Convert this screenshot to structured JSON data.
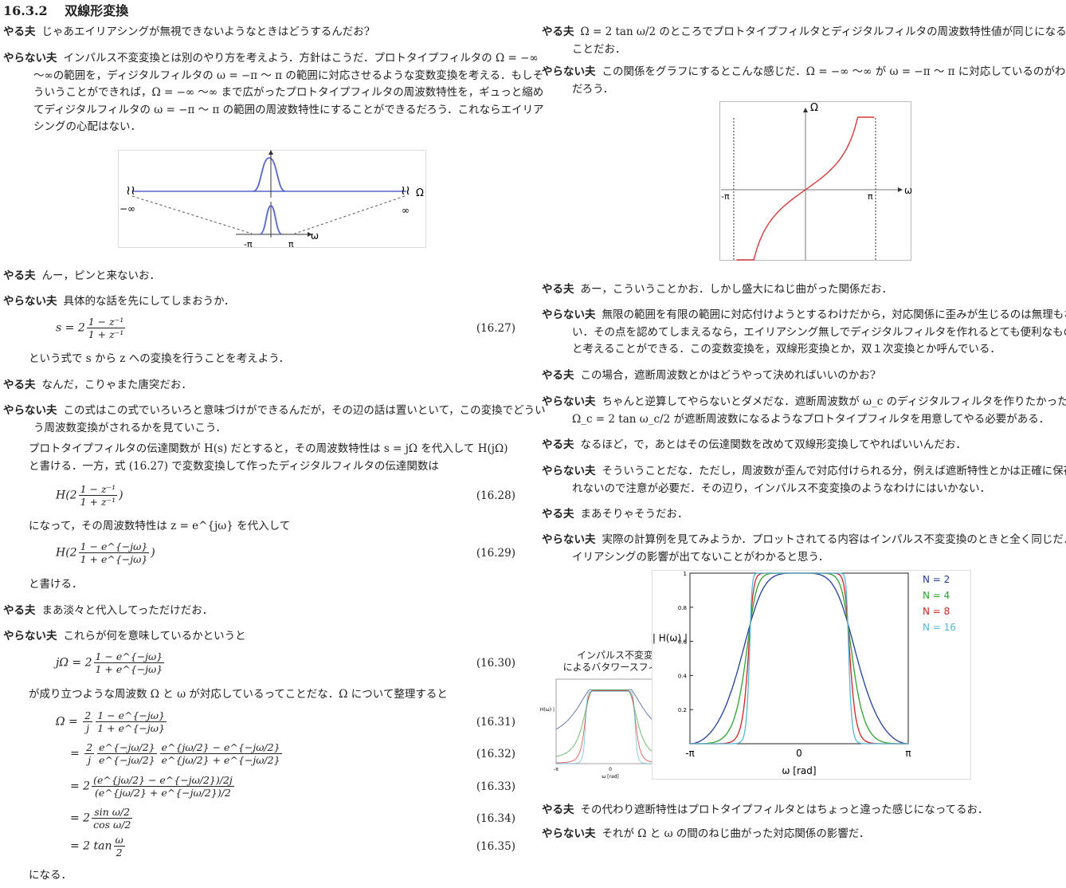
{
  "section": {
    "number": "16.3.2",
    "title": "双線形変換"
  },
  "speakers": {
    "yaruo": "やる夫",
    "yaranai": "やらない夫"
  },
  "left": {
    "p1": "じゃあエイリアシングが無視できないようなときはどうするんだお?",
    "p2": "インパルス不変変換とは別のやり方を考えよう．方針はこうだ．プロトタイプフィルタの Ω = −∞ 〜∞の範囲を，ディジタルフィルタの ω = −π 〜 π の範囲に対応させるような変数変換を考える．もしそういうことができれば，Ω = −∞ 〜∞ まで広がったプロトタイプフィルタの周波数特性を，ギュっと縮めてディジタルフィルタの ω = −π 〜 π の範囲の周波数特性にすることができるだろう．これならエイリアシングの心配はない．",
    "fig1": {
      "left_inf": "−∞",
      "right_inf": "∞",
      "omega_cap": "Ω",
      "omega": "ω",
      "neg_pi": "-π",
      "pi": "π"
    },
    "p3": "んー，ピンと来ないお．",
    "p4": "具体的な話を先にしてしまおうか．",
    "eq27": {
      "lhs": "s = 2",
      "num": "1 − z⁻¹",
      "den": "1 + z⁻¹",
      "tag": "(16.27)"
    },
    "p5": "という式で s から z への変換を行うことを考えよう．",
    "p6": "なんだ，こりゃまた唐突だお．",
    "p7": "この式はこの式でいろいろと意味づけができるんだが，その辺の話は置いといて，この変換でどういう周波数変換がされるかを見ていこう．",
    "p8": "プロトタイプフィルタの伝達関数が H(s) だとすると，その周波数特性は s = jΩ を代入して H(jΩ) と書ける．一方，式 (16.27) で変数変換して作ったディジタルフィルタの伝達関数は",
    "eq28": {
      "lhs": "H(2",
      "num": "1 − z⁻¹",
      "den": "1 + z⁻¹",
      "rhs": ")",
      "tag": "(16.28)"
    },
    "p9": "になって，その周波数特性は z = e^{jω} を代入して",
    "eq29": {
      "lhs": "H(2",
      "num": "1 − e^{−jω}",
      "den": "1 + e^{−jω}",
      "rhs": ")",
      "tag": "(16.29)"
    },
    "p10": "と書ける．",
    "p11": "まあ淡々と代入してっただけだお．",
    "p12": "これらが何を意味しているかというと",
    "eq30": {
      "lhs": "jΩ = 2",
      "num": "1 − e^{−jω}",
      "den": "1 + e^{−jω}",
      "tag": "(16.30)"
    },
    "p13": "が成り立つような周波数 Ω と ω が対応しているってことだな．Ω について整理すると",
    "eq31": {
      "lhs": "Ω = ",
      "f1n": "2",
      "f1d": "j",
      "num": "1 − e^{−jω}",
      "den": "1 + e^{−jω}",
      "tag": "(16.31)"
    },
    "eq32": {
      "lhs": "= ",
      "f1n": "2",
      "f1d": "j",
      "num": "e^{−jω/2}",
      "den": "e^{−jω/2}",
      "num2": "e^{jω/2} − e^{−jω/2}",
      "den2": "e^{jω/2} + e^{−jω/2}",
      "tag": "(16.32)"
    },
    "eq33": {
      "lhs": "= 2",
      "num": "(e^{jω/2} − e^{−jω/2})/2j",
      "den": "(e^{jω/2} + e^{−jω/2})/2",
      "tag": "(16.33)"
    },
    "eq34": {
      "lhs": "= 2",
      "num": "sin ω/2",
      "den": "cos ω/2",
      "tag": "(16.34)"
    },
    "eq35": {
      "lhs": "= 2 tan",
      "num": "ω",
      "den": "2",
      "tag": "(16.35)"
    },
    "p14": "になる．"
  },
  "right": {
    "r1": "Ω = 2 tan ω/2 のところでプロトタイプフィルタとディジタルフィルタの周波数特性値が同じになるってことだお．",
    "r2": "この関係をグラフにするとこんな感じだ．Ω = −∞ 〜∞ が ω = −π 〜 π に対応しているのがわかるだろう．",
    "fig2": {
      "omega_cap": "Ω",
      "omega": "ω",
      "neg_pi": "-π",
      "pi": "π"
    },
    "r3": "あー，こういうことかお．しかし盛大にねじ曲がった関係だお．",
    "r4": "無限の範囲を有限の範囲に対応付けようとするわけだから，対応関係に歪みが生じるのは無理もない．その点を認めてしまえるなら，エイリアシング無しでディジタルフィルタを作れるとても便利なものだと考えることができる．この変数変換を，双線形変換とか，双１次変換とか呼んでいる．",
    "r5": "この場合，遮断周波数とかはどうやって決めればいいのかお?",
    "r6": "ちゃんと逆算してやらないとダメだな．遮断周波数が ω_c のディジタルフィルタを作りたかったら，Ω_c = 2 tan ω_c/2 が遮断周波数になるようなプロトタイプフィルタを用意してやる必要がある．",
    "r7": "なるほど，で，あとはその伝達関数を改めて双線形変換してやればいいんだお．",
    "r8": "そういうことだな．ただし，周波数が歪んで対応付けられる分，例えば遮断特性とかは正確に保存されないので注意が必要だ．その辺り，インパルス不変変換のようなわけにはいかない．",
    "r9": "まあそりゃそうだお．",
    "r10": "実際の計算例を見てみようか．プロットされてる内容はインパルス不変変換のときと全く同じだ．エイリアシングの影響が出てないことがわかると思う．",
    "r11": "その代わり遮断特性はプロトタイプフィルタとはちょっと違った感じになってるお．",
    "r12": "それが Ω と ω の間のねじ曲がった対応関係の影響だ．"
  },
  "chart_data": [
    {
      "type": "line",
      "title": "",
      "xlabel": "ω [rad]",
      "ylabel": "| H(ω) |",
      "xticks": [
        "-π",
        "0",
        "π"
      ],
      "yticks": [
        "0.2",
        "0.4",
        "0.6",
        "0.8",
        "1"
      ],
      "ylim": [
        0,
        1.0
      ],
      "legend_position": "right",
      "series": [
        {
          "name": "N = 2",
          "color": "#1f3f9a",
          "cutoff": 1.4,
          "order": 2
        },
        {
          "name": "N = 4",
          "color": "#2fa02f",
          "cutoff": 1.4,
          "order": 4
        },
        {
          "name": "N = 8",
          "color": "#d62020",
          "cutoff": 1.4,
          "order": 8
        },
        {
          "name": "N = 16",
          "color": "#55b8d8",
          "cutoff": 1.4,
          "order": 16
        }
      ]
    },
    {
      "type": "line",
      "title": "インパルス不変変換によるバタワースフィルタ",
      "xlabel": "ω [rad]",
      "ylabel": "| H(ω) |",
      "xticks": [
        "-π",
        "0",
        "π"
      ],
      "legend_position": "right",
      "series": [
        {
          "name": "N = 2",
          "color": "#1f3f9a"
        },
        {
          "name": "N = 4",
          "color": "#2fa02f"
        },
        {
          "name": "N = 8",
          "color": "#d62020"
        },
        {
          "name": "N = 16",
          "color": "#55b8d8"
        }
      ]
    }
  ],
  "inset_caption": [
    "インパルス不変変換",
    "によるバタワースフィルタ"
  ]
}
